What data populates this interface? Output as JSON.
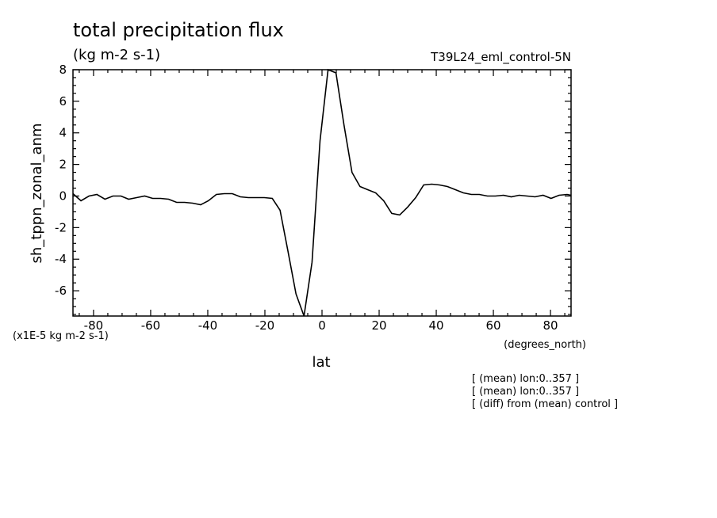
{
  "chart_data": {
    "type": "line",
    "title": "total precipitation flux",
    "units": "(kg m-2 s-1)",
    "run_label": "T39L24_eml_control-5N",
    "ylabel": "sh_tppn_zonal_anm",
    "xlabel": "lat",
    "x_units": "(degrees_north)",
    "y_scale_note": "(x1E-5 kg m-2 s-1)",
    "xlim": [
      -87.2,
      87.2
    ],
    "ylim": [
      -7.6,
      8
    ],
    "x_ticks": [
      -80,
      -60,
      -40,
      -20,
      0,
      20,
      40,
      60,
      80
    ],
    "x_tick_labels": [
      "-80",
      "-60",
      "-40",
      "-20",
      "0",
      "20",
      "40",
      "60",
      "80"
    ],
    "y_ticks": [
      -6,
      -4,
      -2,
      0,
      2,
      4,
      6,
      8
    ],
    "y_tick_labels": [
      "-6",
      "-4",
      "-2",
      "0",
      "2",
      "4",
      "6",
      "8"
    ],
    "grid": false,
    "series": [
      {
        "x": [
          -87.2,
          -84.4,
          -81.6,
          -78.8,
          -76.0,
          -73.2,
          -70.4,
          -67.7,
          -64.9,
          -62.1,
          -59.3,
          -56.5,
          -53.7,
          -50.9,
          -48.1,
          -45.3,
          -42.5,
          -39.8,
          -37.0,
          -34.2,
          -31.4,
          -28.6,
          -25.8,
          -23.0,
          -20.2,
          -17.4,
          -14.7,
          -11.9,
          -9.1,
          -6.3,
          -3.5,
          -0.7,
          2.1,
          4.9,
          7.7,
          10.5,
          13.3,
          16.0,
          18.8,
          21.6,
          24.4,
          27.2,
          30.0,
          32.8,
          35.6,
          38.4,
          41.1,
          43.9,
          46.7,
          49.5,
          52.3,
          55.1,
          57.9,
          60.7,
          63.5,
          66.3,
          69.0,
          71.8,
          74.6,
          77.4,
          80.2,
          83.0,
          85.8,
          87.2
        ],
        "y": [
          0.15,
          -0.3,
          0.0,
          0.1,
          -0.2,
          0.0,
          0.0,
          -0.2,
          -0.1,
          0.0,
          -0.15,
          -0.15,
          -0.2,
          -0.4,
          -0.4,
          -0.45,
          -0.55,
          -0.3,
          0.1,
          0.15,
          0.15,
          -0.05,
          -0.1,
          -0.1,
          -0.1,
          -0.15,
          -0.9,
          -3.5,
          -6.2,
          -7.6,
          -4.2,
          3.5,
          8.0,
          7.8,
          4.5,
          1.5,
          0.6,
          0.4,
          0.2,
          -0.3,
          -1.1,
          -1.2,
          -0.7,
          -0.1,
          0.7,
          0.75,
          0.7,
          0.6,
          0.4,
          0.2,
          0.1,
          0.1,
          0.0,
          0.0,
          0.05,
          -0.05,
          0.05,
          0.0,
          -0.05,
          0.05,
          -0.15,
          0.05,
          0.1,
          0.05
        ]
      }
    ]
  },
  "notes": [
    "[ (mean) lon:0..357 ]",
    "[ (mean) lon:0..357 ]",
    "[ (diff) from (mean) control ]"
  ],
  "colors": {
    "line": "#000000",
    "background": "#ffffff"
  }
}
